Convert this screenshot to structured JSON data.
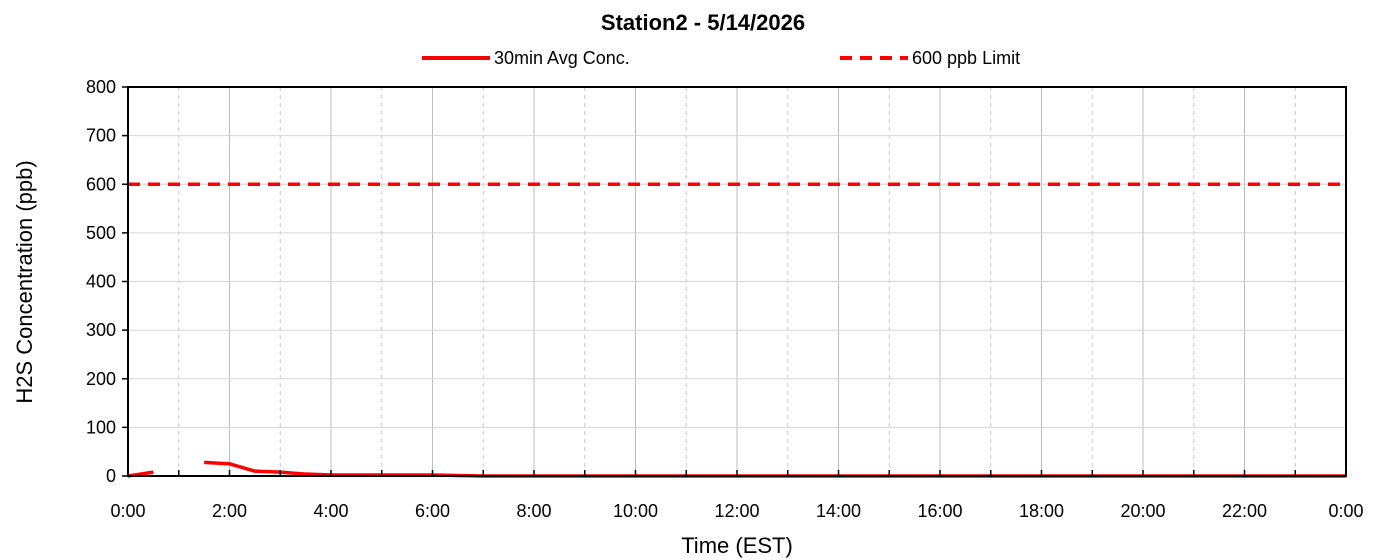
{
  "chart_data": {
    "type": "line",
    "title": "Station2  - 5/14/2026",
    "xlabel": "Time (EST)",
    "ylabel": "H2S Concentration (ppb)",
    "xlim": [
      0,
      24
    ],
    "ylim": [
      0,
      800
    ],
    "x_ticks": [
      "0:00",
      "2:00",
      "4:00",
      "6:00",
      "8:00",
      "10:00",
      "12:00",
      "14:00",
      "16:00",
      "18:00",
      "20:00",
      "22:00",
      "0:00"
    ],
    "x_tick_hours": [
      0,
      2,
      4,
      6,
      8,
      10,
      12,
      14,
      16,
      18,
      20,
      22,
      24
    ],
    "y_ticks": [
      "0",
      "100",
      "200",
      "300",
      "400",
      "500",
      "600",
      "700",
      "800"
    ],
    "y_tick_values": [
      0,
      100,
      200,
      300,
      400,
      500,
      600,
      700,
      800
    ],
    "grid": true,
    "legend_position": "top-center",
    "series": [
      {
        "name": "30min Avg Conc.",
        "style": "solid",
        "color": "#ff0000",
        "segments": [
          [
            [
              0,
              0
            ],
            [
              0.5,
              8
            ]
          ],
          [
            [
              1.5,
              28
            ],
            [
              2.0,
              25
            ],
            [
              2.5,
              10
            ],
            [
              3.0,
              8
            ],
            [
              3.5,
              4
            ],
            [
              4.0,
              2
            ],
            [
              4.5,
              2
            ],
            [
              5.0,
              2
            ],
            [
              5.5,
              2
            ],
            [
              6.0,
              2
            ],
            [
              6.5,
              1
            ],
            [
              7.0,
              0
            ],
            [
              24.0,
              0
            ]
          ]
        ]
      },
      {
        "name": "600 ppb Limit",
        "style": "dashed",
        "color": "#ff0000",
        "segments": [
          [
            [
              0,
              600
            ],
            [
              24,
              600
            ]
          ]
        ]
      }
    ]
  }
}
